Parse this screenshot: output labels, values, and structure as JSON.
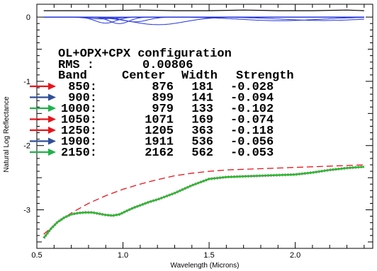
{
  "chart_data": {
    "type": "line",
    "xlabel": "Wavelength (Microns)",
    "ylabel": "Natural Log Reflectance",
    "xlim": [
      0.5,
      2.45
    ],
    "ylim": [
      -3.6,
      0.2
    ],
    "x_ticks": [
      {
        "value": 0.5,
        "label": "0.5"
      },
      {
        "value": 1.0,
        "label": "1.0"
      },
      {
        "value": 1.5,
        "label": "1.5"
      },
      {
        "value": 2.0,
        "label": "2.0"
      }
    ],
    "y_ticks": [
      {
        "value": 0,
        "label": "0"
      },
      {
        "value": -1,
        "label": "-1"
      },
      {
        "value": -2,
        "label": "-2"
      },
      {
        "value": -3,
        "label": "-3"
      }
    ],
    "grid": false,
    "annotation": {
      "title": "OL+OPX+CPX configuration",
      "rms_label": "RMS :",
      "rms_value": "0.00806",
      "columns": [
        "Band",
        "Center",
        "Width",
        "Strength"
      ],
      "rows": [
        {
          "band": "850:",
          "center": "876",
          "width": "181",
          "strength": "-0.028",
          "arrow_color": "#e8141b"
        },
        {
          "band": "900:",
          "center": "899",
          "width": "141",
          "strength": "-0.094",
          "arrow_color": "#2f4f9a"
        },
        {
          "band": "1000:",
          "center": "979",
          "width": "133",
          "strength": "-0.102",
          "arrow_color": "#1fb24a"
        },
        {
          "band": "1050:",
          "center": "1071",
          "width": "169",
          "strength": "-0.074",
          "arrow_color": "#e8141b"
        },
        {
          "band": "1250:",
          "center": "1205",
          "width": "363",
          "strength": "-0.118",
          "arrow_color": "#e8141b"
        },
        {
          "band": "1900:",
          "center": "1911",
          "width": "536",
          "strength": "-0.056",
          "arrow_color": "#2f4f9a"
        },
        {
          "band": "2150:",
          "center": "2162",
          "width": "562",
          "strength": "-0.053",
          "arrow_color": "#1fb24a"
        }
      ]
    },
    "colors": {
      "data": "#d94fd9",
      "model": "#22c022",
      "continuum": "#e8141b",
      "bands": "#2233dd",
      "residual": "#000000"
    },
    "series": [
      {
        "role": "continuum",
        "style": "dashed",
        "color": "#e8141b",
        "x": [
          0.54,
          0.6,
          0.7,
          0.8,
          0.9,
          1.0,
          1.1,
          1.2,
          1.3,
          1.4,
          1.5,
          1.6,
          1.7,
          1.8,
          1.9,
          2.0,
          2.1,
          2.2,
          2.3,
          2.4
        ],
        "y": [
          -3.38,
          -3.24,
          -3.05,
          -2.9,
          -2.78,
          -2.68,
          -2.6,
          -2.53,
          -2.47,
          -2.43,
          -2.4,
          -2.38,
          -2.37,
          -2.36,
          -2.35,
          -2.34,
          -2.33,
          -2.32,
          -2.31,
          -2.3
        ]
      },
      {
        "role": "measured",
        "style": "dotted",
        "color": "#d94fd9",
        "x": [
          0.54,
          0.58,
          0.62,
          0.66,
          0.7,
          0.74,
          0.78,
          0.82,
          0.86,
          0.9,
          0.94,
          0.98,
          1.02,
          1.06,
          1.1,
          1.15,
          1.2,
          1.3,
          1.4,
          1.5,
          1.6,
          1.7,
          1.8,
          1.9,
          2.0,
          2.1,
          2.2,
          2.3,
          2.4
        ],
        "y": [
          -3.44,
          -3.3,
          -3.19,
          -3.12,
          -3.07,
          -3.05,
          -3.04,
          -3.04,
          -3.06,
          -3.08,
          -3.09,
          -3.07,
          -3.02,
          -2.97,
          -2.93,
          -2.88,
          -2.84,
          -2.74,
          -2.62,
          -2.52,
          -2.49,
          -2.48,
          -2.47,
          -2.46,
          -2.45,
          -2.42,
          -2.38,
          -2.35,
          -2.33
        ]
      },
      {
        "role": "model",
        "style": "solid",
        "color": "#22c022",
        "x": [
          0.54,
          0.58,
          0.62,
          0.66,
          0.7,
          0.74,
          0.78,
          0.82,
          0.86,
          0.9,
          0.94,
          0.98,
          1.02,
          1.06,
          1.1,
          1.15,
          1.2,
          1.3,
          1.4,
          1.5,
          1.6,
          1.7,
          1.8,
          1.9,
          2.0,
          2.1,
          2.2,
          2.3,
          2.4
        ],
        "y": [
          -3.44,
          -3.3,
          -3.19,
          -3.12,
          -3.07,
          -3.05,
          -3.04,
          -3.04,
          -3.06,
          -3.08,
          -3.09,
          -3.07,
          -3.02,
          -2.97,
          -2.93,
          -2.88,
          -2.84,
          -2.74,
          -2.62,
          -2.52,
          -2.49,
          -2.48,
          -2.47,
          -2.46,
          -2.45,
          -2.42,
          -2.38,
          -2.35,
          -2.33
        ]
      },
      {
        "role": "residual",
        "style": "solid",
        "color": "#000000",
        "x": [
          0.54,
          0.7,
          0.9,
          1.1,
          1.3,
          1.5,
          1.7,
          1.9,
          2.1,
          2.3,
          2.4
        ],
        "y": [
          0.1,
          0.1,
          0.1,
          0.11,
          0.1,
          0.1,
          0.11,
          0.1,
          0.1,
          0.11,
          0.1
        ]
      }
    ],
    "band_curves": [
      {
        "center": 0.876,
        "width": 0.181,
        "strength": -0.028
      },
      {
        "center": 0.899,
        "width": 0.141,
        "strength": -0.094
      },
      {
        "center": 0.979,
        "width": 0.133,
        "strength": -0.102
      },
      {
        "center": 1.071,
        "width": 0.169,
        "strength": -0.074
      },
      {
        "center": 1.205,
        "width": 0.363,
        "strength": -0.118
      },
      {
        "center": 1.911,
        "width": 0.536,
        "strength": -0.056
      },
      {
        "center": 2.162,
        "width": 0.562,
        "strength": -0.053
      }
    ]
  }
}
